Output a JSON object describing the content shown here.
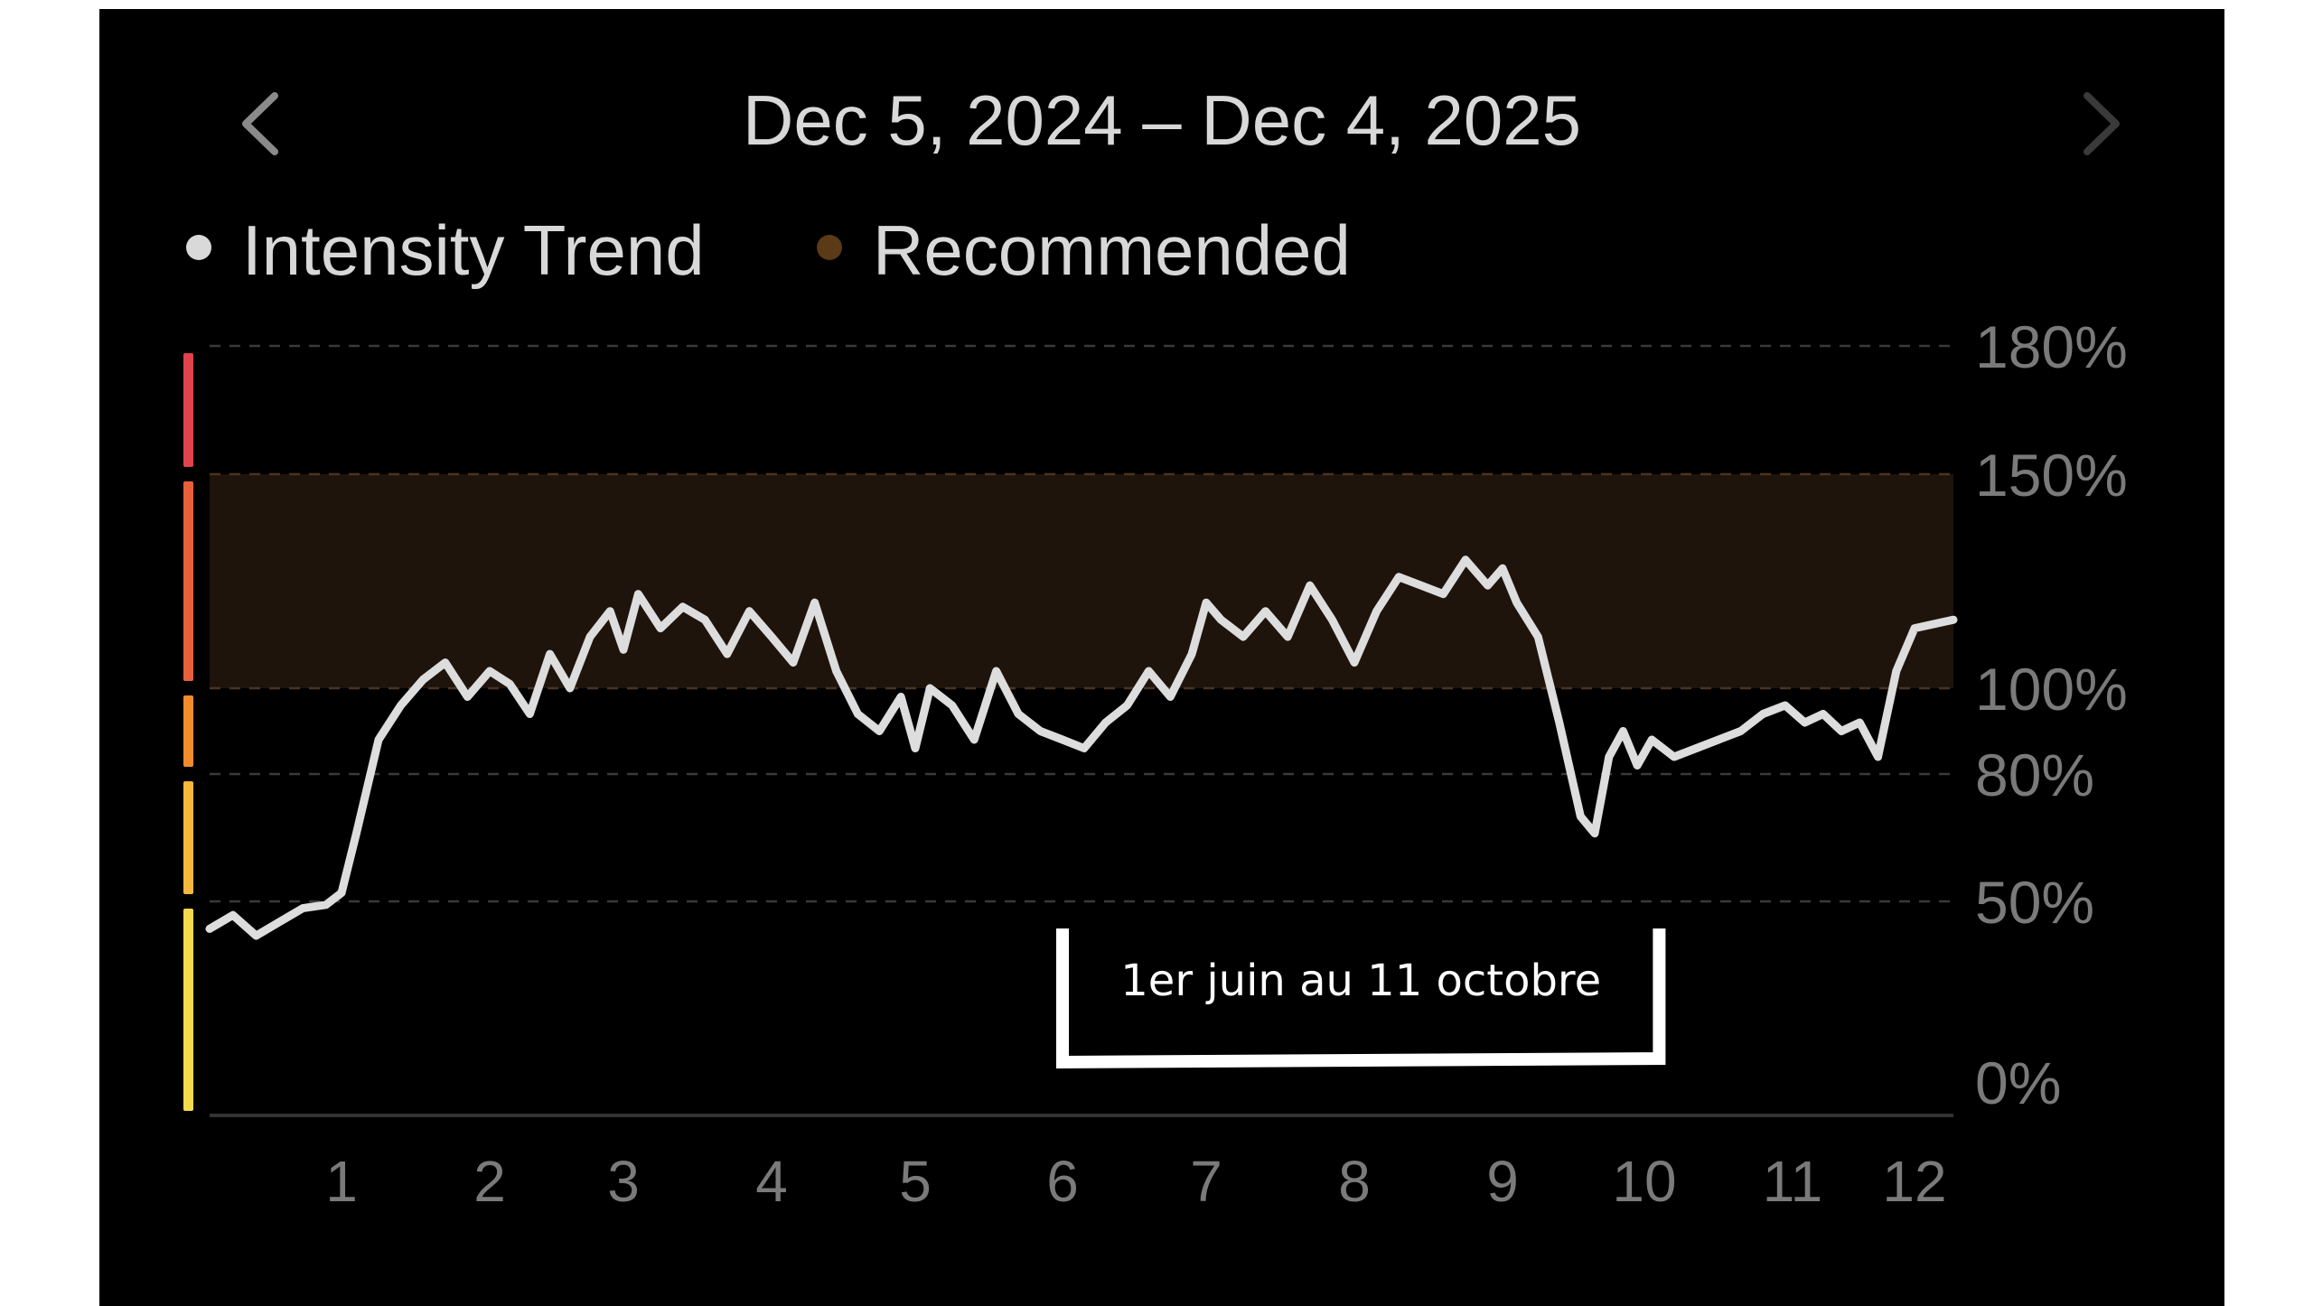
{
  "header": {
    "date_range": "Dec 5, 2024 – Dec 4, 2025",
    "prev_icon": "chevron-left-icon",
    "next_icon": "chevron-right-icon"
  },
  "legend": [
    {
      "label": "Intensity Trend",
      "color": "#d9d9d9"
    },
    {
      "label": "Recommended",
      "color": "#5a3a17"
    }
  ],
  "annotation": {
    "label": "1er juin au 11 octobre",
    "x_start": 6.0,
    "x_end": 10.1
  },
  "colors": {
    "line": "#dddddd",
    "band": "#1e140c",
    "zone_bars": [
      "#f2d94e",
      "#f5b83c",
      "#f08c2c",
      "#e8603a",
      "#e0434a"
    ]
  },
  "chart_data": {
    "type": "line",
    "title": "",
    "xlabel": "",
    "ylabel": "",
    "x_ticks": [
      "1",
      "2",
      "3",
      "4",
      "5",
      "6",
      "7",
      "8",
      "9",
      "10",
      "11",
      "12"
    ],
    "y_ticks": [
      "0%",
      "50%",
      "80%",
      "100%",
      "150%",
      "180%"
    ],
    "y_tick_values": [
      0,
      50,
      80,
      100,
      150,
      180
    ],
    "y_scale": "piecewise",
    "recommended_band": [
      100,
      150
    ],
    "grid": true,
    "legend_position": "top-left",
    "xlim": [
      0.15,
      12.1
    ],
    "series": [
      {
        "name": "Intensity Trend",
        "x": [
          0.15,
          0.3,
          0.45,
          0.6,
          0.75,
          0.9,
          1.0,
          1.1,
          1.25,
          1.4,
          1.55,
          1.7,
          1.85,
          2.0,
          2.15,
          2.3,
          2.45,
          2.6,
          2.75,
          2.9,
          3.0,
          3.1,
          3.25,
          3.4,
          3.55,
          3.7,
          3.85,
          4.0,
          4.15,
          4.3,
          4.45,
          4.6,
          4.75,
          4.9,
          5.0,
          5.1,
          5.25,
          5.4,
          5.55,
          5.7,
          5.85,
          6.0,
          6.15,
          6.3,
          6.45,
          6.6,
          6.75,
          6.9,
          7.0,
          7.1,
          7.25,
          7.4,
          7.55,
          7.7,
          7.85,
          8.0,
          8.15,
          8.3,
          8.45,
          8.6,
          8.75,
          8.9,
          9.0,
          9.1,
          9.25,
          9.4,
          9.55,
          9.65,
          9.75,
          9.85,
          9.95,
          10.05,
          10.2,
          10.35,
          10.5,
          10.65,
          10.8,
          10.95,
          11.1,
          11.25,
          11.4,
          11.55,
          11.7,
          11.85,
          12.0,
          12.1
        ],
        "values": [
          42,
          46,
          40,
          44,
          48,
          49,
          52,
          66,
          88,
          96,
          102,
          106,
          98,
          104,
          101,
          94,
          108,
          100,
          112,
          118,
          109,
          122,
          114,
          119,
          116,
          108,
          118,
          112,
          106,
          120,
          104,
          94,
          90,
          98,
          86,
          100,
          96,
          88,
          104,
          94,
          90,
          88,
          86,
          92,
          96,
          104,
          98,
          108,
          120,
          116,
          112,
          118,
          112,
          124,
          116,
          106,
          118,
          126,
          124,
          122,
          130,
          124,
          128,
          120,
          112,
          92,
          70,
          66,
          84,
          90,
          82,
          88,
          84,
          86,
          88,
          90,
          94,
          96,
          92,
          94,
          90,
          92,
          84,
          104,
          114,
          116
        ]
      }
    ]
  }
}
